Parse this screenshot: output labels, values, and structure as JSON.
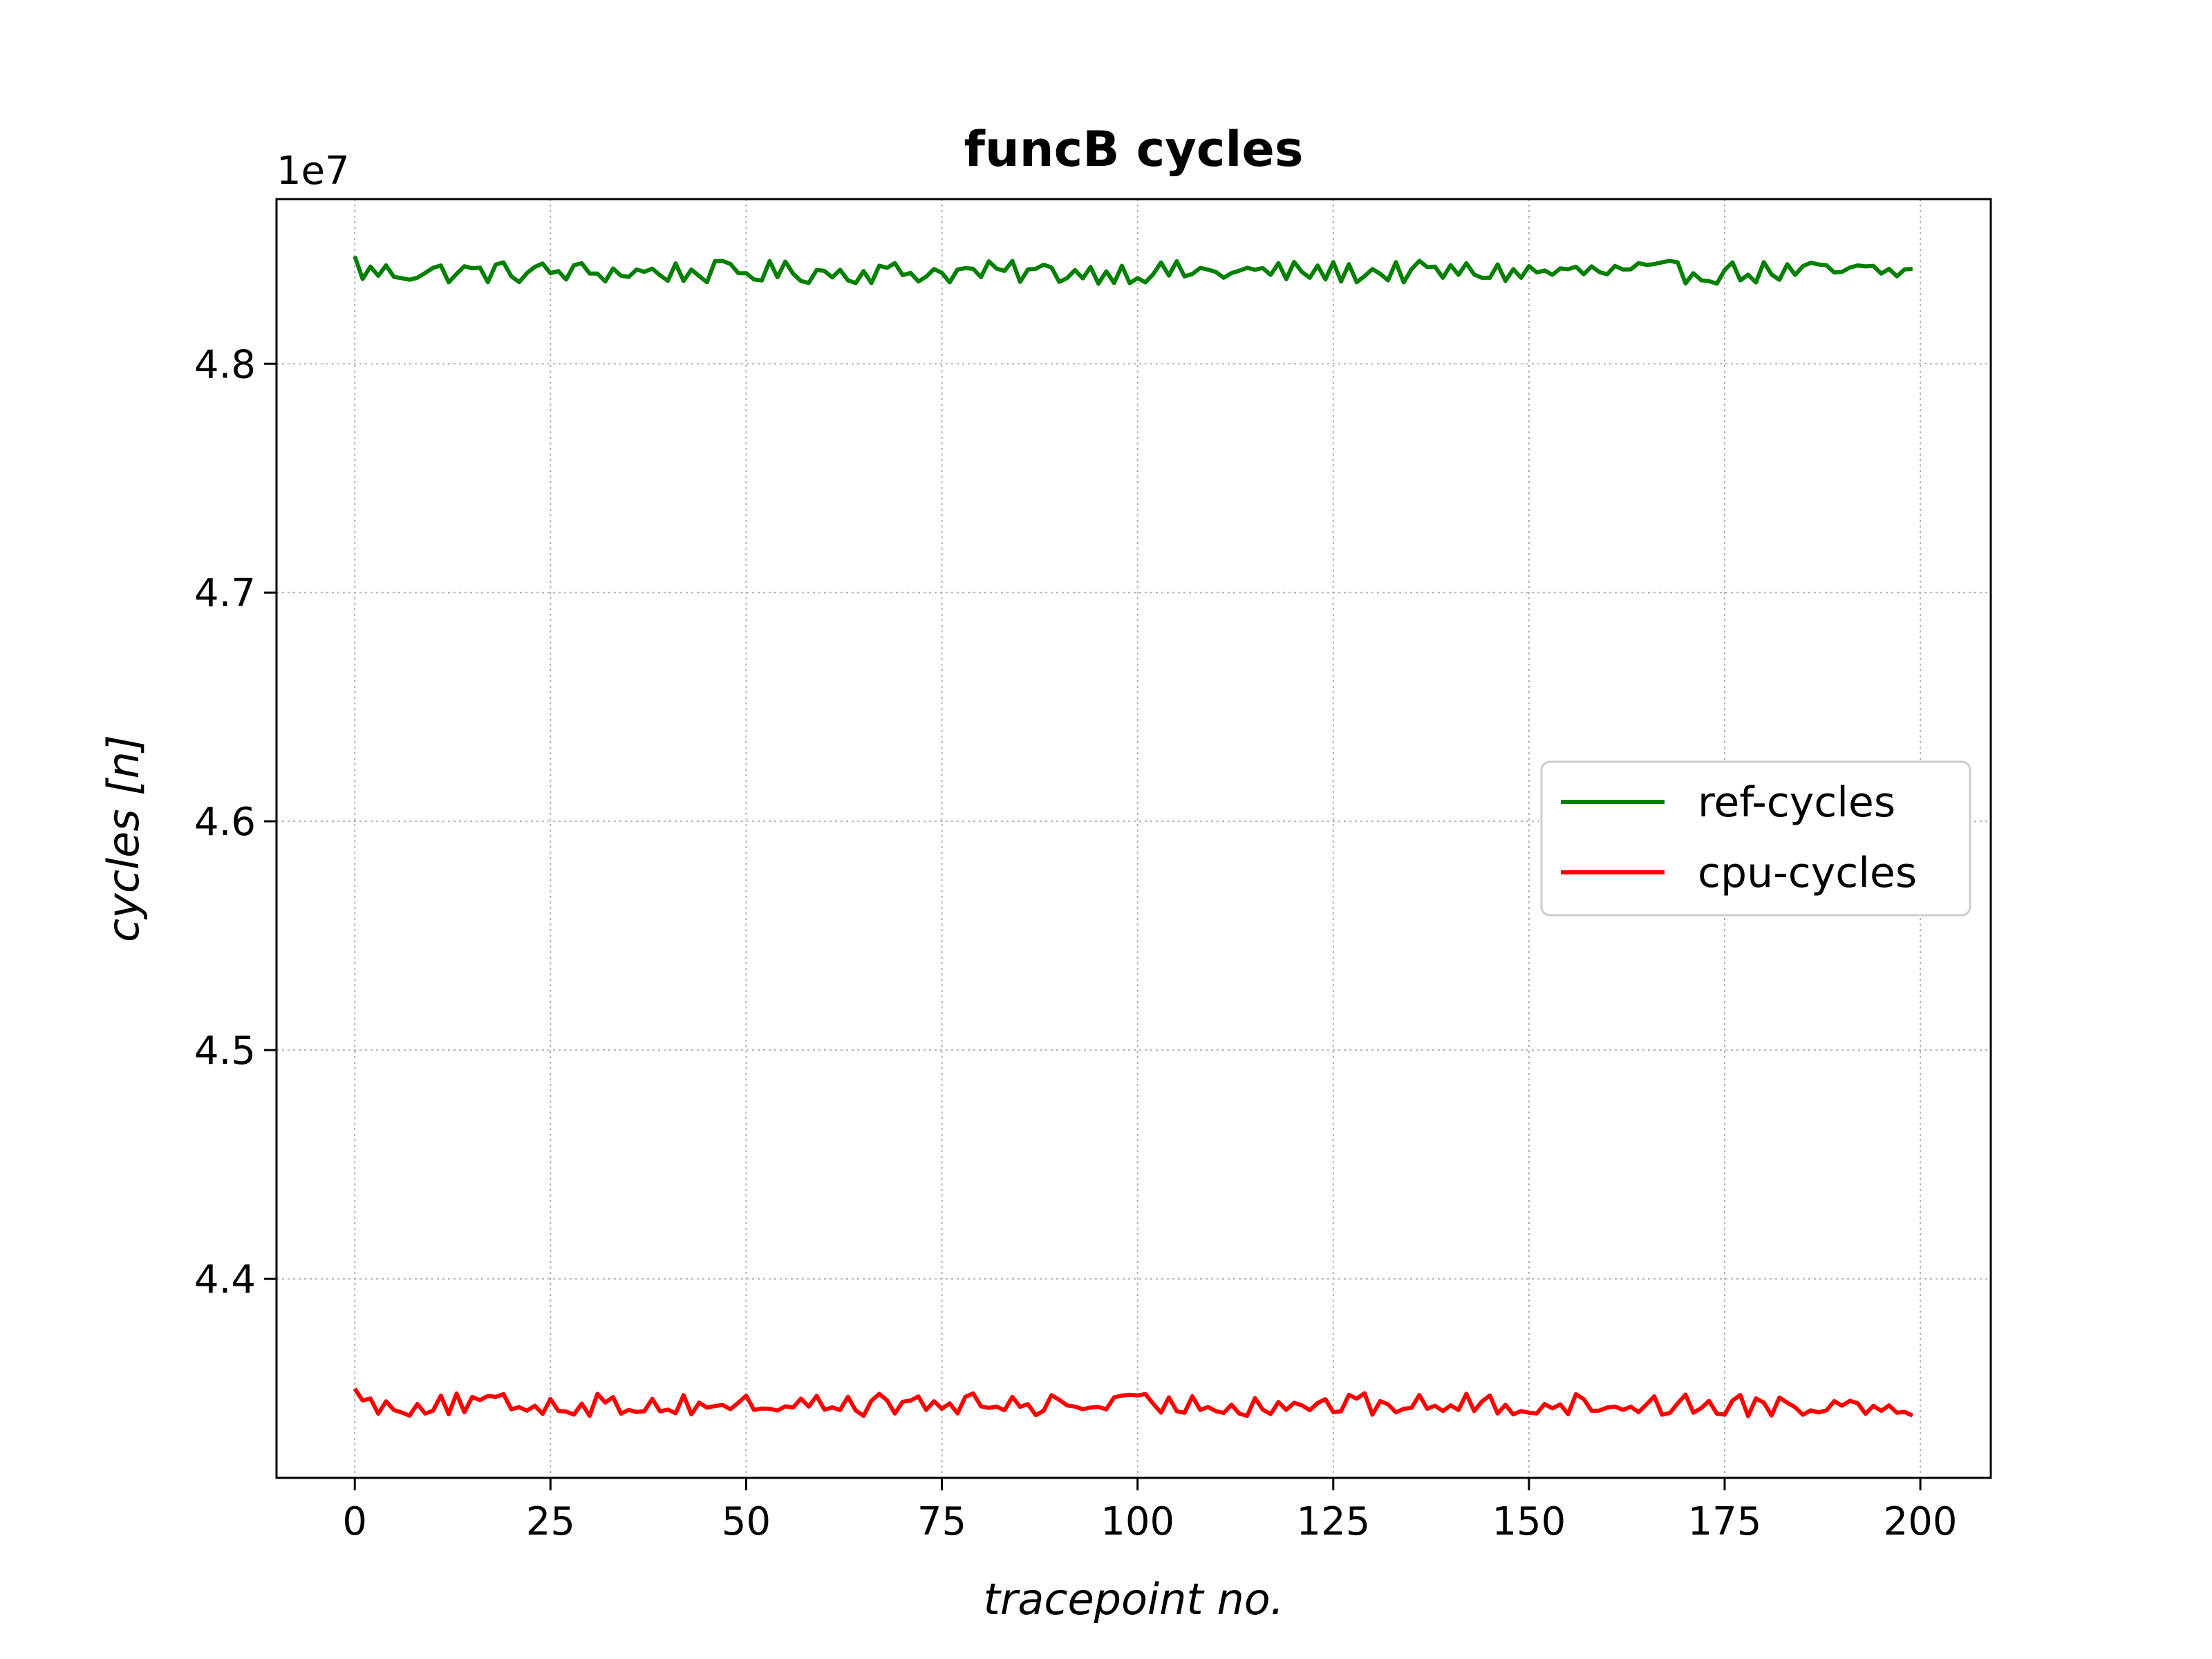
{
  "chart_data": {
    "type": "line",
    "title": "funcB cycles",
    "xlabel": "tracepoint no.",
    "ylabel": "cycles [n]",
    "y_offset_label": "1e7",
    "y_scale": 10000000,
    "xlim": [
      -10,
      209
    ],
    "ylim": [
      43.13,
      48.72
    ],
    "xticks": [
      0,
      25,
      50,
      75,
      100,
      125,
      150,
      175,
      200
    ],
    "yticks": [
      44.0,
      45.0,
      46.0,
      47.0,
      48.0
    ],
    "ytick_labels": [
      "4.4",
      "4.5",
      "4.6",
      "4.7",
      "4.8"
    ],
    "grid": true,
    "legend_position": "center-right",
    "n_points": 200,
    "series": [
      {
        "name": "ref-cycles",
        "color": "#008000",
        "base": 48.4,
        "amplitude": 0.05,
        "first_value": 48.47,
        "typical_value": 48.4
      },
      {
        "name": "cpu-cycles",
        "color": "#ff0000",
        "base": 43.45,
        "amplitude": 0.05,
        "first_value": 43.52,
        "typical_value": 43.45
      }
    ]
  }
}
